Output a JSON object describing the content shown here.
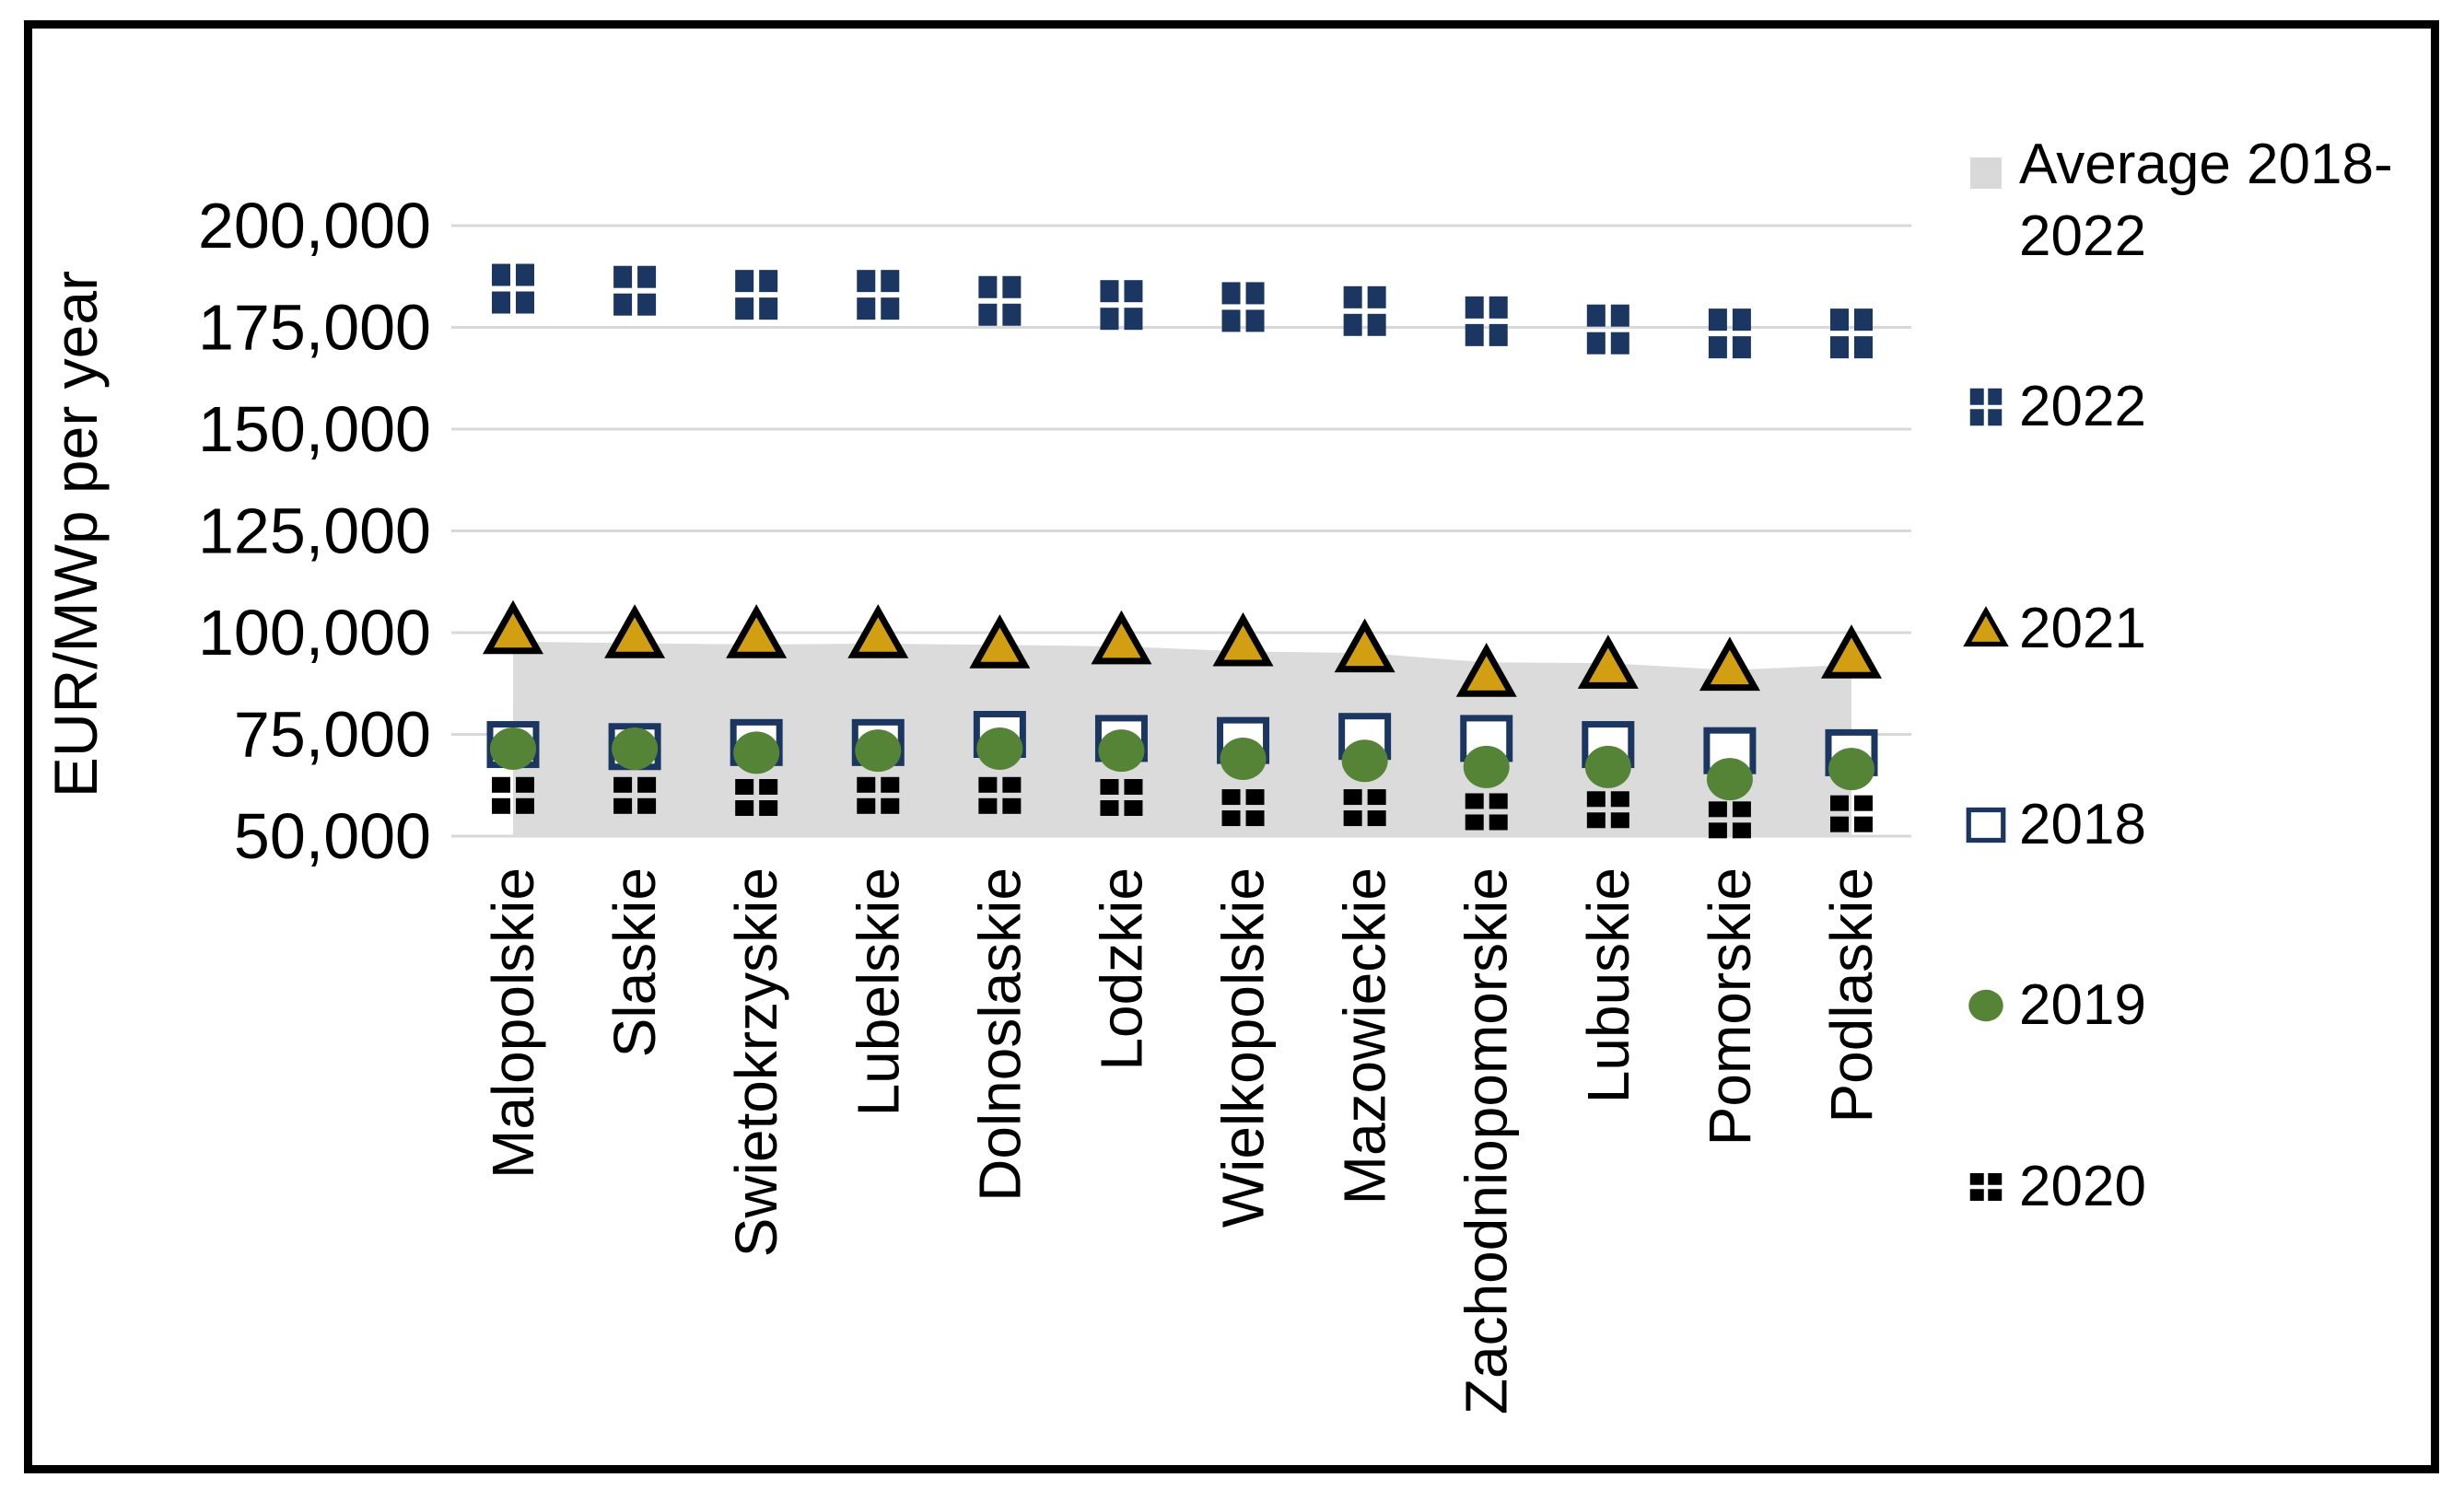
{
  "chart_data": {
    "type": "scatter",
    "title": "",
    "ylabel": "EUR/MWp per year",
    "xlabel": "",
    "ylim": [
      50000,
      200000
    ],
    "ytick_step": 25000,
    "ytick_labels": [
      "200,000",
      "175,000",
      "150,000",
      "125,000",
      "100,000",
      "75,000",
      "50,000"
    ],
    "grid": true,
    "gridline_color": "#D8D8D8",
    "legend_position": "right",
    "categories": [
      "Malopolskie",
      "Slaskie",
      "Swietokrzyskie",
      "Lubelskie",
      "Dolnoslaskie",
      "Lodzkie",
      "Wielkopolskie",
      "Mazowieckie",
      "Zachodniopomorskie",
      "Lubuskie",
      "Pomorskie",
      "Podlaskie"
    ],
    "series": [
      {
        "name": "Average 2018-2022",
        "type": "area",
        "marker": "area",
        "color": "#DBDBDB",
        "legend_color": "#D9D9D9",
        "values": [
          97800,
          97400,
          97100,
          97300,
          97000,
          96600,
          95400,
          95000,
          92700,
          92500,
          90800,
          92100
        ]
      },
      {
        "name": "2022",
        "type": "scatter",
        "marker": "grid-squares-tall",
        "color": "#1B3661",
        "values": [
          184500,
          184000,
          183000,
          183000,
          181500,
          180500,
          180000,
          179000,
          176500,
          174500,
          173500,
          173500
        ]
      },
      {
        "name": "2021",
        "type": "scatter",
        "marker": "triangle",
        "color": "#D29F13",
        "border_color": "#000000",
        "values": [
          100500,
          99500,
          99500,
          99500,
          97000,
          98000,
          97500,
          96000,
          90000,
          92000,
          91500,
          94500
        ]
      },
      {
        "name": "2018",
        "type": "scatter",
        "marker": "open-square",
        "color": "#1B3661",
        "fill_color": "#FFFFFF",
        "values": [
          72500,
          72000,
          73000,
          73000,
          75000,
          74000,
          73500,
          74500,
          74000,
          72500,
          71000,
          70500
        ]
      },
      {
        "name": "2019",
        "type": "scatter",
        "marker": "circle",
        "color": "#568437",
        "values": [
          71500,
          71500,
          70500,
          71000,
          71500,
          71000,
          69000,
          68500,
          67000,
          67000,
          64000,
          66500
        ]
      },
      {
        "name": "2020",
        "type": "scatter",
        "marker": "grid-squares-flat",
        "color": "#000000",
        "values": [
          60000,
          60000,
          59500,
          60000,
          60000,
          59500,
          57000,
          57000,
          56000,
          56500,
          54000,
          55500
        ]
      }
    ]
  }
}
